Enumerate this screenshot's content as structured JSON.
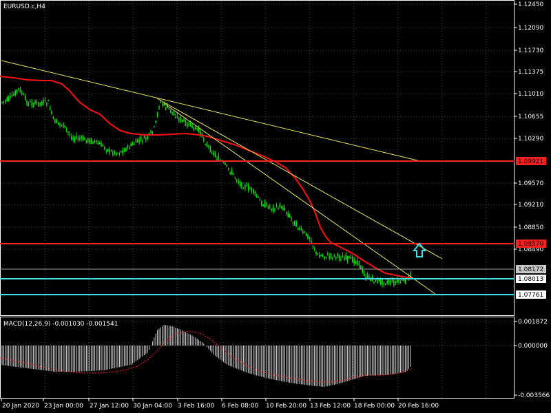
{
  "window": {
    "symbol_title": "EURUSD.c,H4"
  },
  "macd": {
    "label": "MACD(12,26,9) -0.001030 -0.001541",
    "yticks": [
      "0.001872",
      "0.000000",
      "-0.003566"
    ]
  },
  "price_axis": {
    "ticks": [
      "1.12450",
      "1.12090",
      "1.11730",
      "1.11375",
      "1.11010",
      "1.10655",
      "1.10290",
      "1.09570",
      "1.09210",
      "1.08850",
      "1.08490"
    ]
  },
  "levels": [
    {
      "price": "1.09921",
      "color": "#ff2020",
      "tag_bg": "#ff2020",
      "tag_fg": "#000000"
    },
    {
      "price": "1.08570",
      "color": "#ff2020",
      "tag_bg": "#ff2020",
      "tag_fg": "#000000"
    },
    {
      "price": "1.08172",
      "color": "#a0a0a0",
      "tag_bg": "#c8c8c8",
      "tag_fg": "#000000"
    },
    {
      "price": "1.08013",
      "color": "#40e0e0",
      "tag_bg": "#ffffff",
      "tag_fg": "#000000"
    },
    {
      "price": "1.07761",
      "color": "#40e0e0",
      "tag_bg": "#ffffff",
      "tag_fg": "#000000"
    }
  ],
  "time_axis": {
    "labels": [
      "20 Jan 2020",
      "23 Jan 00:00",
      "27 Jan 12:00",
      "30 Jan 04:00",
      "3 Feb 16:00",
      "6 Feb 08:00",
      "10 Feb 20:00",
      "13 Feb 12:00",
      "18 Feb 00:00",
      "20 Feb 16:00"
    ]
  },
  "colors": {
    "candles": "#00e000",
    "ma": "#ff1010",
    "trendline": "#e8e860",
    "grid": "#3a4a5a",
    "arrow": "#40e0e0"
  },
  "icons": {
    "signal_arrow": "arrow-up-icon"
  }
}
